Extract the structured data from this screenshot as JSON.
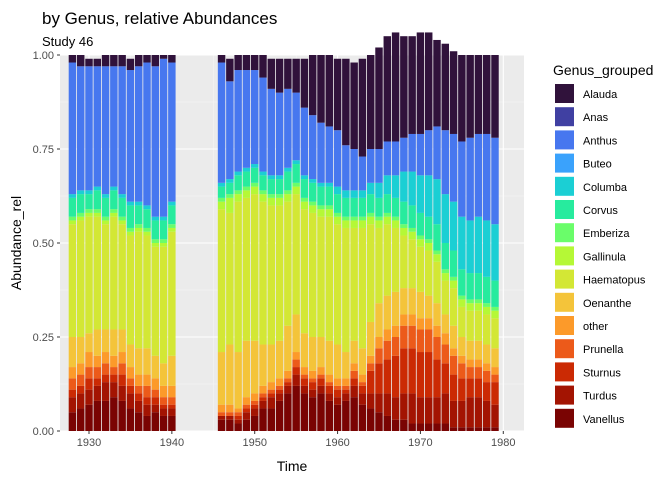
{
  "chart_data": {
    "type": "bar",
    "stacked": true,
    "title": "by Genus, relative Abundances",
    "subtitle": "Study 46",
    "xlabel": "Time",
    "ylabel": "Abundance_rel",
    "xlim": [
      1926.5,
      1982.5
    ],
    "ylim": [
      0,
      1
    ],
    "x_ticks": [
      1930,
      1940,
      1950,
      1960,
      1970,
      1980
    ],
    "y_ticks": [
      0,
      0.25,
      0.5,
      0.75,
      1
    ],
    "y_tick_labels": [
      "0.00",
      "0.25",
      "0.50",
      "0.75",
      "1.00"
    ],
    "grid": true,
    "legend_title": "Genus_grouped",
    "legend_position": "right",
    "x": [
      1928,
      1929,
      1930,
      1931,
      1932,
      1933,
      1934,
      1935,
      1936,
      1937,
      1938,
      1939,
      1940,
      1946,
      1947,
      1948,
      1949,
      1950,
      1951,
      1952,
      1953,
      1954,
      1955,
      1956,
      1957,
      1958,
      1959,
      1960,
      1961,
      1962,
      1963,
      1964,
      1965,
      1966,
      1967,
      1968,
      1969,
      1970,
      1971,
      1972,
      1973,
      1974,
      1975,
      1976,
      1977,
      1978,
      1979
    ],
    "series": [
      {
        "name": "Vanellus",
        "color": "#7a0403",
        "values": [
          0.05,
          0.06,
          0.07,
          0.08,
          0.08,
          0.09,
          0.08,
          0.06,
          0.05,
          0.04,
          0.05,
          0.04,
          0.04,
          0.03,
          0.03,
          0.02,
          0.03,
          0.04,
          0.06,
          0.06,
          0.08,
          0.1,
          0.12,
          0.1,
          0.09,
          0.1,
          0.08,
          0.07,
          0.08,
          0.09,
          0.07,
          0.06,
          0.05,
          0.04,
          0.03,
          0.03,
          0.02,
          0.02,
          0.02,
          0.02,
          0.02,
          0.01,
          0.01,
          0.01,
          0.01,
          0.01,
          0.01
        ]
      },
      {
        "name": "Turdus",
        "color": "#a31402",
        "values": [
          0.04,
          0.04,
          0.04,
          0.04,
          0.05,
          0.04,
          0.04,
          0.04,
          0.03,
          0.03,
          0.02,
          0.02,
          0.02,
          0.01,
          0.01,
          0.01,
          0.02,
          0.02,
          0.02,
          0.03,
          0.02,
          0.02,
          0.03,
          0.02,
          0.02,
          0.02,
          0.02,
          0.02,
          0.02,
          0.03,
          0.03,
          0.04,
          0.05,
          0.06,
          0.06,
          0.07,
          0.08,
          0.07,
          0.07,
          0.07,
          0.08,
          0.07,
          0.07,
          0.08,
          0.08,
          0.07,
          0.06
        ]
      },
      {
        "name": "Sturnus",
        "color": "#cb2a04",
        "values": [
          0.02,
          0.02,
          0.03,
          0.02,
          0.02,
          0.02,
          0.03,
          0.02,
          0.02,
          0.02,
          0.02,
          0.01,
          0.01,
          0.0,
          0.0,
          0.01,
          0.01,
          0.01,
          0.01,
          0.01,
          0.01,
          0.01,
          0.02,
          0.02,
          0.02,
          0.02,
          0.02,
          0.02,
          0.01,
          0.02,
          0.02,
          0.06,
          0.08,
          0.09,
          0.11,
          0.12,
          0.12,
          0.12,
          0.12,
          0.1,
          0.08,
          0.07,
          0.06,
          0.05,
          0.05,
          0.05,
          0.06
        ]
      },
      {
        "name": "Prunella",
        "color": "#ec5a1a",
        "values": [
          0.03,
          0.03,
          0.03,
          0.03,
          0.03,
          0.02,
          0.03,
          0.02,
          0.02,
          0.03,
          0.02,
          0.02,
          0.02,
          0.01,
          0.01,
          0.01,
          0.01,
          0.01,
          0.01,
          0.01,
          0.01,
          0.01,
          0.02,
          0.01,
          0.01,
          0.01,
          0.01,
          0.01,
          0.01,
          0.02,
          0.01,
          0.02,
          0.04,
          0.05,
          0.05,
          0.06,
          0.06,
          0.06,
          0.06,
          0.06,
          0.05,
          0.05,
          0.04,
          0.03,
          0.03,
          0.03,
          0.02
        ]
      },
      {
        "name": "other",
        "color": "#fc9a2a",
        "values": [
          0.03,
          0.03,
          0.04,
          0.03,
          0.03,
          0.03,
          0.03,
          0.03,
          0.03,
          0.03,
          0.03,
          0.03,
          0.03,
          0.02,
          0.02,
          0.01,
          0.02,
          0.02,
          0.02,
          0.02,
          0.02,
          0.02,
          0.02,
          0.02,
          0.02,
          0.02,
          0.02,
          0.02,
          0.02,
          0.02,
          0.02,
          0.02,
          0.03,
          0.03,
          0.03,
          0.03,
          0.03,
          0.03,
          0.03,
          0.03,
          0.03,
          0.02,
          0.02,
          0.02,
          0.02,
          0.02,
          0.02
        ]
      },
      {
        "name": "Oenanthe",
        "color": "#f4c43a",
        "values": [
          0.08,
          0.07,
          0.05,
          0.07,
          0.06,
          0.07,
          0.06,
          0.06,
          0.07,
          0.07,
          0.06,
          0.06,
          0.08,
          0.14,
          0.16,
          0.15,
          0.15,
          0.14,
          0.11,
          0.1,
          0.1,
          0.12,
          0.1,
          0.09,
          0.09,
          0.08,
          0.09,
          0.09,
          0.07,
          0.06,
          0.07,
          0.09,
          0.09,
          0.09,
          0.09,
          0.07,
          0.07,
          0.07,
          0.06,
          0.06,
          0.05,
          0.06,
          0.05,
          0.05,
          0.05,
          0.05,
          0.05
        ]
      },
      {
        "name": "Haematopus",
        "color": "#d3e735",
        "values": [
          0.3,
          0.31,
          0.31,
          0.3,
          0.28,
          0.3,
          0.28,
          0.29,
          0.31,
          0.3,
          0.29,
          0.31,
          0.33,
          0.38,
          0.35,
          0.4,
          0.38,
          0.39,
          0.38,
          0.37,
          0.36,
          0.33,
          0.32,
          0.33,
          0.33,
          0.32,
          0.33,
          0.32,
          0.33,
          0.3,
          0.32,
          0.26,
          0.2,
          0.19,
          0.17,
          0.14,
          0.13,
          0.12,
          0.12,
          0.11,
          0.09,
          0.1,
          0.08,
          0.08,
          0.08,
          0.08,
          0.08
        ]
      },
      {
        "name": "Gallinula",
        "color": "#b5f836",
        "values": [
          0.01,
          0.01,
          0.01,
          0.01,
          0.01,
          0.01,
          0.01,
          0.01,
          0.01,
          0.01,
          0.01,
          0.01,
          0.01,
          0.02,
          0.04,
          0.02,
          0.02,
          0.02,
          0.02,
          0.02,
          0.02,
          0.02,
          0.02,
          0.02,
          0.02,
          0.02,
          0.02,
          0.02,
          0.02,
          0.02,
          0.02,
          0.02,
          0.02,
          0.02,
          0.02,
          0.02,
          0.02,
          0.02,
          0.02,
          0.02,
          0.02,
          0.02,
          0.02,
          0.02,
          0.02,
          0.02,
          0.02
        ]
      },
      {
        "name": "Emberiza",
        "color": "#6afd6a",
        "values": [
          0.01,
          0.01,
          0.01,
          0.01,
          0.01,
          0.01,
          0.01,
          0.01,
          0.01,
          0.01,
          0.01,
          0.01,
          0.01,
          0.01,
          0.01,
          0.01,
          0.01,
          0.01,
          0.01,
          0.01,
          0.01,
          0.01,
          0.01,
          0.01,
          0.01,
          0.01,
          0.01,
          0.01,
          0.01,
          0.01,
          0.01,
          0.01,
          0.01,
          0.01,
          0.01,
          0.01,
          0.01,
          0.01,
          0.01,
          0.01,
          0.01,
          0.01,
          0.01,
          0.01,
          0.01,
          0.01,
          0.01
        ]
      },
      {
        "name": "Corvus",
        "color": "#27eb9e",
        "values": [
          0.05,
          0.05,
          0.04,
          0.05,
          0.05,
          0.05,
          0.05,
          0.06,
          0.05,
          0.05,
          0.05,
          0.05,
          0.05,
          0.03,
          0.03,
          0.04,
          0.04,
          0.04,
          0.04,
          0.04,
          0.04,
          0.05,
          0.05,
          0.05,
          0.05,
          0.05,
          0.05,
          0.05,
          0.05,
          0.05,
          0.05,
          0.05,
          0.05,
          0.05,
          0.05,
          0.06,
          0.06,
          0.06,
          0.06,
          0.07,
          0.07,
          0.07,
          0.07,
          0.07,
          0.07,
          0.07,
          0.07
        ]
      },
      {
        "name": "Columba",
        "color": "#1bcfd4",
        "values": [
          0.01,
          0.01,
          0.01,
          0.01,
          0.01,
          0.01,
          0.01,
          0.01,
          0.01,
          0.01,
          0.01,
          0.01,
          0.01,
          0.01,
          0.01,
          0.01,
          0.01,
          0.01,
          0.01,
          0.01,
          0.01,
          0.01,
          0.01,
          0.01,
          0.01,
          0.01,
          0.01,
          0.02,
          0.02,
          0.02,
          0.02,
          0.03,
          0.04,
          0.05,
          0.06,
          0.08,
          0.09,
          0.1,
          0.11,
          0.12,
          0.13,
          0.13,
          0.14,
          0.14,
          0.15,
          0.15,
          0.15
        ]
      },
      {
        "name": "Buteo",
        "color": "#3aa2fc",
        "values": [
          0.0,
          0.0,
          0.0,
          0.0,
          0.0,
          0.0,
          0.0,
          0.0,
          0.0,
          0.0,
          0.0,
          0.0,
          0.0,
          0.0,
          0.0,
          0.0,
          0.0,
          0.0,
          0.0,
          0.0,
          0.0,
          0.0,
          0.0,
          0.0,
          0.0,
          0.0,
          0.0,
          0.0,
          0.0,
          0.0,
          0.0,
          0.0,
          0.0,
          0.0,
          0.0,
          0.0,
          0.0,
          0.0,
          0.0,
          0.0,
          0.0,
          0.0,
          0.0,
          0.0,
          0.0,
          0.0,
          0.0
        ]
      },
      {
        "name": "Anthus",
        "color": "#4777ef",
        "values": [
          0.35,
          0.33,
          0.33,
          0.32,
          0.34,
          0.32,
          0.34,
          0.35,
          0.36,
          0.38,
          0.4,
          0.42,
          0.37,
          0.32,
          0.26,
          0.27,
          0.26,
          0.25,
          0.25,
          0.23,
          0.22,
          0.21,
          0.18,
          0.18,
          0.17,
          0.16,
          0.15,
          0.15,
          0.12,
          0.11,
          0.09,
          0.09,
          0.09,
          0.09,
          0.09,
          0.09,
          0.1,
          0.11,
          0.12,
          0.14,
          0.17,
          0.18,
          0.2,
          0.22,
          0.22,
          0.23,
          0.23
        ]
      },
      {
        "name": "Anas",
        "color": "#4040a2",
        "values": [
          0.0,
          0.0,
          0.0,
          0.0,
          0.0,
          0.0,
          0.0,
          0.0,
          0.0,
          0.0,
          0.0,
          0.0,
          0.0,
          0.0,
          0.0,
          0.0,
          0.0,
          0.0,
          0.0,
          0.0,
          0.0,
          0.0,
          0.0,
          0.0,
          0.0,
          0.0,
          0.0,
          0.0,
          0.0,
          0.0,
          0.0,
          0.0,
          0.0,
          0.0,
          0.0,
          0.0,
          0.0,
          0.0,
          0.0,
          0.0,
          0.0,
          0.0,
          0.0,
          0.0,
          0.0,
          0.0,
          0.0
        ]
      },
      {
        "name": "Alauda",
        "color": "#30123b",
        "values": [
          0.02,
          0.03,
          0.02,
          0.02,
          0.03,
          0.03,
          0.03,
          0.03,
          0.03,
          0.02,
          0.03,
          0.01,
          0.02,
          0.02,
          0.06,
          0.04,
          0.04,
          0.04,
          0.06,
          0.08,
          0.09,
          0.08,
          0.09,
          0.13,
          0.16,
          0.18,
          0.19,
          0.19,
          0.23,
          0.23,
          0.26,
          0.25,
          0.27,
          0.28,
          0.29,
          0.27,
          0.26,
          0.27,
          0.26,
          0.23,
          0.23,
          0.22,
          0.23,
          0.22,
          0.21,
          0.21,
          0.22
        ]
      }
    ]
  }
}
